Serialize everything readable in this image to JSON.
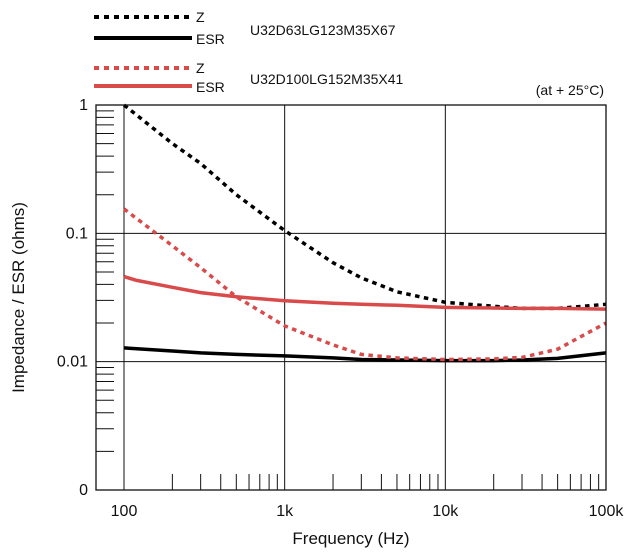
{
  "chart_data": {
    "type": "line",
    "xlabel": "Frequency (Hz)",
    "ylabel": "Impedance / ESR (ohms)",
    "annotation": "(at + 25°C)",
    "x_scale": "log",
    "y_scale": "log",
    "xlim": [
      100,
      100000
    ],
    "ylim": [
      0.001,
      1
    ],
    "grid": true,
    "x_ticks": [
      {
        "value": 100,
        "label": "100"
      },
      {
        "value": 1000,
        "label": "1k"
      },
      {
        "value": 10000,
        "label": "10k"
      },
      {
        "value": 100000,
        "label": "100k"
      }
    ],
    "y_ticks": [
      {
        "value": 0.001,
        "label": "0"
      },
      {
        "value": 0.01,
        "label": "0.01"
      },
      {
        "value": 0.1,
        "label": "0.1"
      },
      {
        "value": 1,
        "label": "1"
      }
    ],
    "legend": {
      "placement": "top-left",
      "groups": [
        {
          "part": "U32D63LG123M35X67",
          "z_label": "Z",
          "esr_label": "ESR",
          "color": "#000000"
        },
        {
          "part": "U32D100LG152M35X41",
          "z_label": "Z",
          "esr_label": "ESR",
          "color": "#d94a4a"
        }
      ]
    },
    "series": [
      {
        "name": "Z",
        "part": "U32D63LG123M35X67",
        "color": "#000000",
        "style": "dotted",
        "x": [
          100,
          200,
          300,
          500,
          1000,
          2000,
          3000,
          5000,
          10000,
          20000,
          30000,
          50000,
          100000
        ],
        "y": [
          1.0,
          0.5,
          0.35,
          0.2,
          0.105,
          0.059,
          0.045,
          0.035,
          0.029,
          0.027,
          0.026,
          0.026,
          0.028
        ]
      },
      {
        "name": "ESR",
        "part": "U32D63LG123M35X67",
        "color": "#000000",
        "style": "solid",
        "x": [
          100,
          200,
          300,
          500,
          1000,
          2000,
          3000,
          5000,
          10000,
          20000,
          30000,
          50000,
          100000
        ],
        "y": [
          0.0128,
          0.0121,
          0.0117,
          0.0114,
          0.0111,
          0.0107,
          0.0104,
          0.0103,
          0.0102,
          0.0102,
          0.0103,
          0.0106,
          0.0117
        ]
      },
      {
        "name": "Z",
        "part": "U32D100LG152M35X41",
        "color": "#d94a4a",
        "style": "dotted",
        "x": [
          100,
          200,
          300,
          500,
          1000,
          2000,
          3000,
          5000,
          10000,
          20000,
          30000,
          50000,
          100000
        ],
        "y": [
          0.155,
          0.08,
          0.054,
          0.032,
          0.019,
          0.0135,
          0.0114,
          0.0107,
          0.0104,
          0.0105,
          0.0108,
          0.0125,
          0.02
        ]
      },
      {
        "name": "ESR",
        "part": "U32D100LG152M35X41",
        "color": "#d94a4a",
        "style": "solid",
        "x": [
          100,
          120,
          200,
          300,
          500,
          1000,
          2000,
          3000,
          5000,
          10000,
          20000,
          30000,
          50000,
          100000
        ],
        "y": [
          0.046,
          0.043,
          0.038,
          0.0345,
          0.032,
          0.0298,
          0.0285,
          0.028,
          0.0275,
          0.0265,
          0.0262,
          0.026,
          0.026,
          0.0257
        ]
      }
    ]
  }
}
